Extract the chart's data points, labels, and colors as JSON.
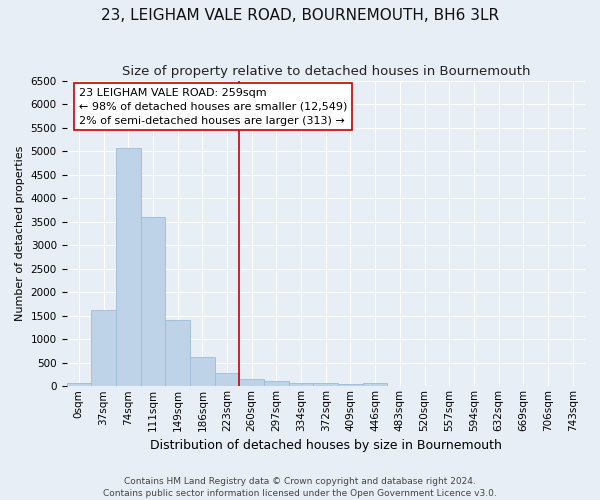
{
  "title": "23, LEIGHAM VALE ROAD, BOURNEMOUTH, BH6 3LR",
  "subtitle": "Size of property relative to detached houses in Bournemouth",
  "xlabel": "Distribution of detached houses by size in Bournemouth",
  "ylabel": "Number of detached properties",
  "footer_line1": "Contains HM Land Registry data © Crown copyright and database right 2024.",
  "footer_line2": "Contains public sector information licensed under the Open Government Licence v3.0.",
  "bar_labels": [
    "0sqm",
    "37sqm",
    "74sqm",
    "111sqm",
    "149sqm",
    "186sqm",
    "223sqm",
    "260sqm",
    "297sqm",
    "334sqm",
    "372sqm",
    "409sqm",
    "446sqm",
    "483sqm",
    "520sqm",
    "557sqm",
    "594sqm",
    "632sqm",
    "669sqm",
    "706sqm",
    "743sqm"
  ],
  "bar_values": [
    70,
    1630,
    5060,
    3600,
    1410,
    620,
    290,
    150,
    110,
    80,
    60,
    50,
    60,
    10,
    5,
    5,
    5,
    5,
    5,
    5,
    5
  ],
  "bar_color": "#bed3e8",
  "bar_edge_color": "#9bbcd8",
  "background_color": "#e8eef5",
  "grid_color": "#ffffff",
  "vline_x": 7,
  "vline_color": "#cc0000",
  "ylim": [
    0,
    6500
  ],
  "yticks": [
    0,
    500,
    1000,
    1500,
    2000,
    2500,
    3000,
    3500,
    4000,
    4500,
    5000,
    5500,
    6000,
    6500
  ],
  "annotation_title": "23 LEIGHAM VALE ROAD: 259sqm",
  "annotation_line1": "← 98% of detached houses are smaller (12,549)",
  "annotation_line2": "2% of semi-detached houses are larger (313) →",
  "annotation_box_color": "#ffffff",
  "annotation_box_edge_color": "#cc0000",
  "title_fontsize": 11,
  "subtitle_fontsize": 9.5,
  "xlabel_fontsize": 9,
  "ylabel_fontsize": 8,
  "tick_fontsize": 7.5,
  "annotation_fontsize": 8,
  "footer_fontsize": 6.5
}
